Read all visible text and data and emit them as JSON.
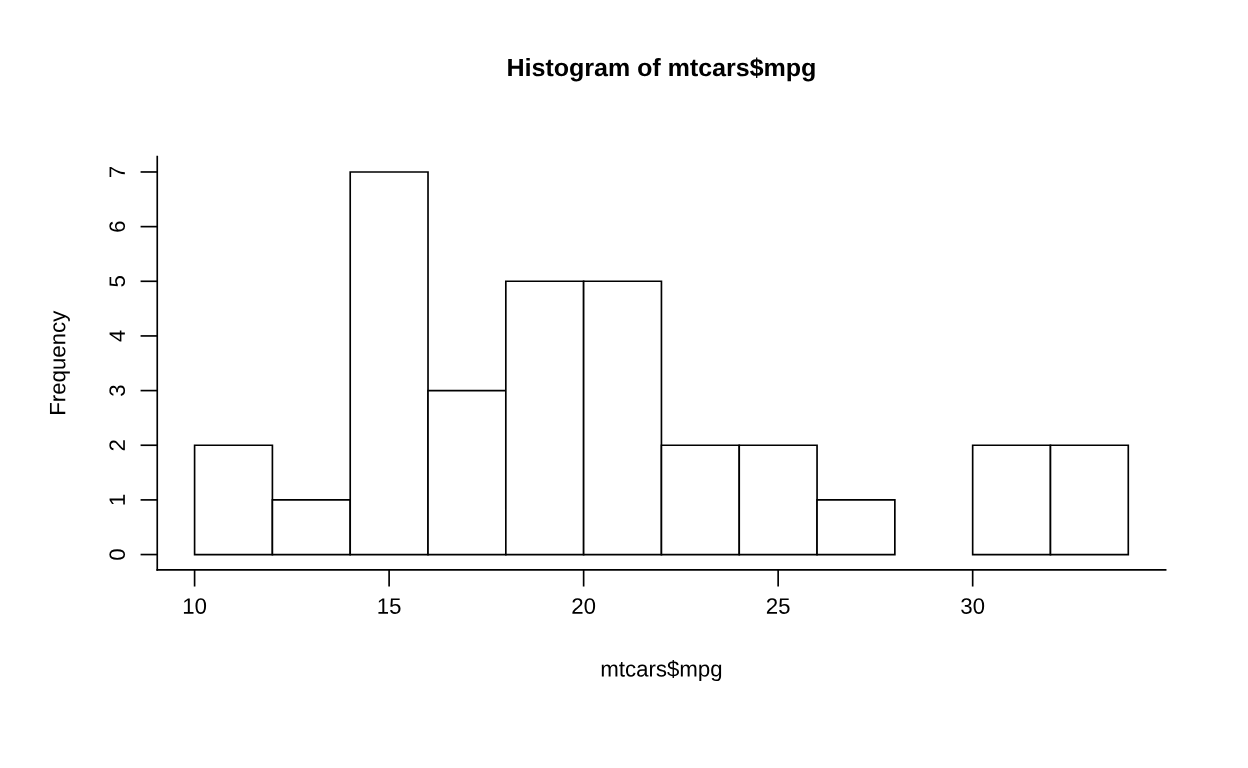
{
  "chart_data": {
    "type": "histogram",
    "title": "Histogram of mtcars$mpg",
    "xlabel": "mtcars$mpg",
    "ylabel": "Frequency",
    "bins": [
      10,
      12,
      14,
      16,
      18,
      20,
      22,
      24,
      26,
      28,
      30,
      32,
      34
    ],
    "values": [
      2,
      1,
      7,
      3,
      5,
      5,
      2,
      2,
      1,
      0,
      2,
      2
    ],
    "color": "#ffffff",
    "xlim": [
      9.04,
      34.96
    ],
    "ylim": [
      -0.28,
      7.28
    ],
    "xticks": [
      10,
      15,
      20,
      25,
      30
    ],
    "yticks": [
      0,
      1,
      2,
      3,
      4,
      5,
      6,
      7
    ]
  }
}
